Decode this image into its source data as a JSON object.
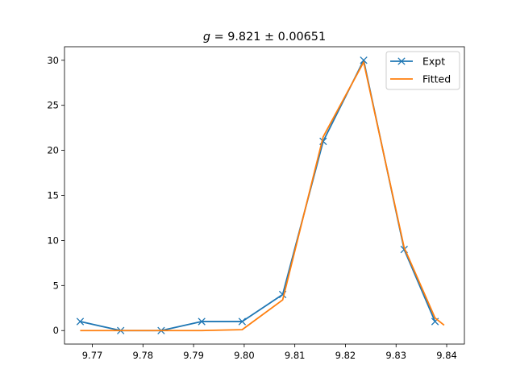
{
  "chart_data": {
    "type": "line",
    "title": "g = 9.821 ± 0.00651",
    "title_parts": {
      "var": "g",
      "rest": " = 9.821 ± 0.00651"
    },
    "xlabel": "",
    "ylabel": "",
    "xlim": [
      9.7645,
      9.8435
    ],
    "ylim": [
      -1.5,
      31.5
    ],
    "grid": false,
    "legend_position": "upper right",
    "x_ticks": [
      9.77,
      9.78,
      9.79,
      9.8,
      9.81,
      9.82,
      9.83,
      9.84
    ],
    "x_tick_labels": [
      "9.77",
      "9.78",
      "9.79",
      "9.80",
      "9.81",
      "9.82",
      "9.83",
      "9.84"
    ],
    "y_ticks": [
      0,
      5,
      10,
      15,
      20,
      25,
      30
    ],
    "y_tick_labels": [
      "0",
      "5",
      "10",
      "15",
      "20",
      "25",
      "30"
    ],
    "series": [
      {
        "name": "Expt",
        "color": "#1f77b4",
        "marker": "x",
        "x": [
          9.7676,
          9.7756,
          9.7836,
          9.7916,
          9.7996,
          9.8076,
          9.8156,
          9.8236,
          9.8316,
          9.8377
        ],
        "y": [
          1,
          0,
          0,
          1,
          1,
          4,
          21,
          30,
          9,
          1
        ]
      },
      {
        "name": "Fitted",
        "color": "#ff7f0e",
        "marker": "none",
        "x": [
          9.7676,
          9.7756,
          9.7836,
          9.7916,
          9.7996,
          9.8076,
          9.8156,
          9.8236,
          9.8316,
          9.8377,
          9.8395
        ],
        "y": [
          0,
          0,
          0,
          0,
          0.1,
          3.4,
          21.5,
          29.8,
          9.2,
          1.4,
          0.6
        ]
      }
    ]
  }
}
